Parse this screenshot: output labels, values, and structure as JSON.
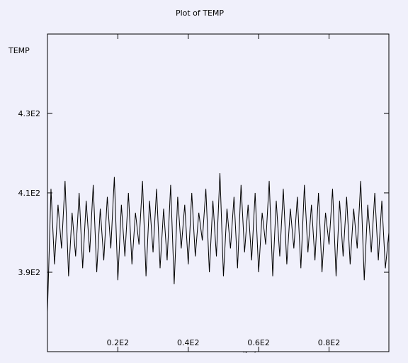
{
  "chart_data": {
    "type": "line",
    "title": "Plot of TEMP",
    "xlabel": "Time (ps)",
    "ylabel": "TEMP",
    "xlim": [
      0,
      97
    ],
    "ylim": [
      370,
      450
    ],
    "x_ticks": [
      {
        "value": 20,
        "label": "0.2E2"
      },
      {
        "value": 40,
        "label": "0.4E2"
      },
      {
        "value": 60,
        "label": "0.6E2"
      },
      {
        "value": 80,
        "label": "0.8E2"
      }
    ],
    "y_ticks": [
      {
        "value": 390,
        "label": "3.9E2"
      },
      {
        "value": 410,
        "label": "4.1E2"
      },
      {
        "value": 430,
        "label": "4.3E2"
      }
    ],
    "grid": false,
    "series": [
      {
        "color": "#000000",
        "x": [
          0,
          1,
          2,
          3,
          4,
          5,
          6,
          7,
          8,
          9,
          10,
          11,
          12,
          13,
          14,
          15,
          16,
          17,
          18,
          19,
          20,
          21,
          22,
          23,
          24,
          25,
          26,
          27,
          28,
          29,
          30,
          31,
          32,
          33,
          34,
          35,
          36,
          37,
          38,
          39,
          40,
          41,
          42,
          43,
          44,
          45,
          46,
          47,
          48,
          49,
          50,
          51,
          52,
          53,
          54,
          55,
          56,
          57,
          58,
          59,
          60,
          61,
          62,
          63,
          64,
          65,
          66,
          67,
          68,
          69,
          70,
          71,
          72,
          73,
          74,
          75,
          76,
          77,
          78,
          79,
          80,
          81,
          82,
          83,
          84,
          85,
          86,
          87,
          88,
          89,
          90,
          91,
          92,
          93,
          94,
          95,
          96,
          97
        ],
        "y": [
          380,
          411,
          392,
          407,
          396,
          413,
          389,
          405,
          394,
          410,
          391,
          408,
          395,
          412,
          390,
          406,
          393,
          409,
          396,
          414,
          388,
          407,
          394,
          410,
          392,
          405,
          397,
          413,
          389,
          408,
          395,
          411,
          391,
          406,
          393,
          412,
          387,
          409,
          396,
          407,
          392,
          410,
          394,
          405,
          398,
          411,
          390,
          408,
          394,
          415,
          389,
          406,
          396,
          409,
          391,
          412,
          395,
          407,
          393,
          410,
          390,
          405,
          397,
          413,
          389,
          408,
          394,
          411,
          392,
          406,
          396,
          409,
          391,
          412,
          395,
          407,
          393,
          410,
          390,
          405,
          397,
          411,
          389,
          408,
          394,
          409,
          392,
          406,
          396,
          413,
          388,
          407,
          395,
          410,
          393,
          408,
          391,
          400
        ]
      }
    ]
  }
}
